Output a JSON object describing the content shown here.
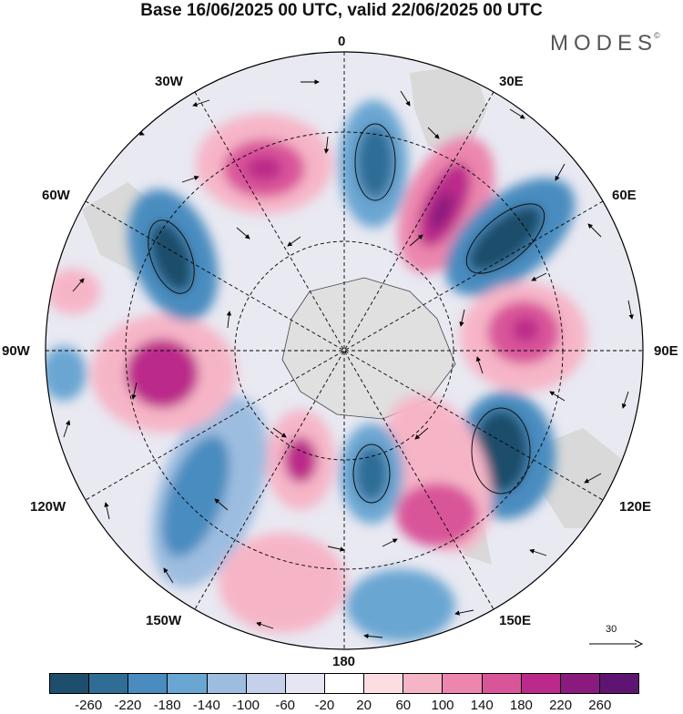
{
  "title": "Base 16/06/2025 00 UTC, valid 22/06/2025 00 UTC",
  "brand": {
    "name": "MODES",
    "mark": "©"
  },
  "longitude_labels": {
    "lon_0": "0",
    "lon_30e": "30E",
    "lon_60e": "60E",
    "lon_90e": "90E",
    "lon_120e": "120E",
    "lon_150e": "150E",
    "lon_180": "180",
    "lon_150w": "150W",
    "lon_120w": "120W",
    "lon_90w": "90W",
    "lon_60w": "60W",
    "lon_30w": "30W"
  },
  "colorbar": {
    "colors": [
      "#1d4e6b",
      "#2f6d96",
      "#4a8cbf",
      "#6aa6d2",
      "#9dbde0",
      "#c5d0ea",
      "#e6e6f2",
      "#ffffff",
      "#fbdde2",
      "#f6b5c7",
      "#ec86ae",
      "#d9559a",
      "#bb2a8a",
      "#8a1a7e",
      "#5e1571"
    ],
    "ticks": [
      "-260",
      "-220",
      "-180",
      "-140",
      "-100",
      "-60",
      "-20",
      "20",
      "60",
      "100",
      "140",
      "180",
      "220",
      "260"
    ]
  },
  "vector_scale": "30",
  "colors": {
    "land": "#d9d9d9",
    "antarctica": "#e0e0e0"
  }
}
